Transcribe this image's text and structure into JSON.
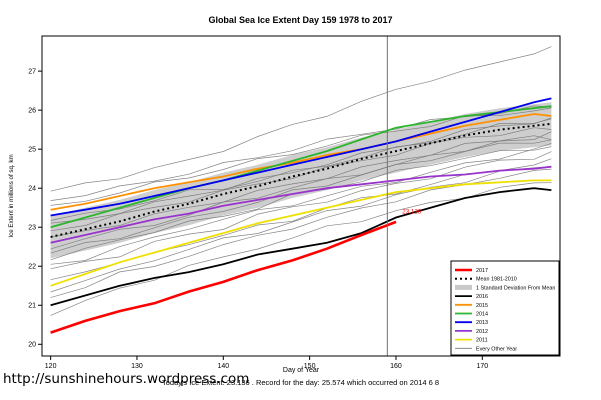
{
  "page": {
    "footer_note": "Today's Ice Extent: 23.136 . Record for the day: 25.574 which occurred on 2014 6 8",
    "site_link": "http://sunshinehours.wordpress.com"
  },
  "chart_data": {
    "type": "line",
    "title": "Global Sea Ice Extent Day 159 1978 to 2017",
    "xlabel": "Day of Year",
    "ylabel": "Ice Extent in millions of sq. km",
    "xlim": [
      119,
      179
    ],
    "ylim": [
      19.7,
      27.9
    ],
    "x_ticks": [
      120,
      130,
      140,
      150,
      160,
      170
    ],
    "y_ticks": [
      20,
      21,
      22,
      23,
      24,
      25,
      26,
      27
    ],
    "marker_day": 159,
    "annotation": {
      "text": "23.136",
      "day": 160.5,
      "value": 23.35,
      "color": "#ff0000"
    },
    "x": [
      120,
      124,
      128,
      132,
      136,
      140,
      144,
      148,
      152,
      156,
      160,
      164,
      168,
      172,
      176,
      178
    ],
    "band": {
      "name": "1 Standard Deviation From Mean",
      "color": "#c9c9c9",
      "upper": [
        23.3,
        23.5,
        23.7,
        23.95,
        24.15,
        24.4,
        24.6,
        24.85,
        25.05,
        25.3,
        25.5,
        25.7,
        25.9,
        26.05,
        26.15,
        26.2
      ],
      "lower": [
        22.2,
        22.4,
        22.6,
        22.85,
        23.05,
        23.3,
        23.5,
        23.75,
        23.95,
        24.2,
        24.4,
        24.6,
        24.8,
        24.95,
        25.05,
        25.1
      ]
    },
    "series": [
      {
        "name": "2016",
        "color": "#000000",
        "width": 1.8,
        "dash": null,
        "values": [
          21.0,
          21.25,
          21.5,
          21.7,
          21.85,
          22.05,
          22.3,
          22.45,
          22.6,
          22.85,
          23.25,
          23.5,
          23.75,
          23.9,
          24.0,
          23.95
        ]
      },
      {
        "name": "2015",
        "color": "#ff9100",
        "width": 1.8,
        "dash": null,
        "values": [
          23.45,
          23.6,
          23.8,
          24.0,
          24.15,
          24.3,
          24.5,
          24.65,
          24.85,
          25.0,
          25.2,
          25.4,
          25.6,
          25.75,
          25.9,
          25.85
        ]
      },
      {
        "name": "2014",
        "color": "#2db52d",
        "width": 1.8,
        "dash": null,
        "values": [
          23.0,
          23.25,
          23.5,
          23.75,
          24.0,
          24.2,
          24.45,
          24.7,
          24.95,
          25.25,
          25.55,
          25.7,
          25.85,
          25.95,
          26.05,
          26.1
        ]
      },
      {
        "name": "2013",
        "color": "#0000ee",
        "width": 1.8,
        "dash": null,
        "values": [
          23.3,
          23.45,
          23.6,
          23.8,
          24.0,
          24.2,
          24.4,
          24.6,
          24.8,
          25.0,
          25.2,
          25.45,
          25.7,
          25.95,
          26.2,
          26.3
        ]
      },
      {
        "name": "2012",
        "color": "#9933cc",
        "width": 1.8,
        "dash": null,
        "values": [
          22.6,
          22.8,
          23.0,
          23.2,
          23.35,
          23.55,
          23.7,
          23.85,
          24.0,
          24.1,
          24.2,
          24.3,
          24.35,
          24.45,
          24.5,
          24.55
        ]
      },
      {
        "name": "2011",
        "color": "#f0e000",
        "width": 1.8,
        "dash": null,
        "values": [
          21.5,
          21.8,
          22.1,
          22.35,
          22.6,
          22.85,
          23.1,
          23.3,
          23.5,
          23.7,
          23.9,
          24.0,
          24.1,
          24.15,
          24.2,
          24.2
        ]
      },
      {
        "name": "Mean 1981-2010",
        "color": "#000000",
        "width": 2,
        "dash": "2,3",
        "values": [
          22.75,
          22.95,
          23.15,
          23.4,
          23.6,
          23.85,
          24.05,
          24.3,
          24.5,
          24.75,
          24.95,
          25.15,
          25.35,
          25.5,
          25.6,
          25.65
        ]
      },
      {
        "name": "2017",
        "color": "#ff0000",
        "width": 2.6,
        "dash": null,
        "values": [
          20.3,
          20.6,
          20.85,
          21.05,
          21.35,
          21.6,
          21.9,
          22.15,
          22.45,
          22.8,
          23.136,
          null,
          null,
          null,
          null,
          null
        ]
      }
    ],
    "other_years": {
      "name": "Every Other Year",
      "color": "#787878",
      "width": 0.7,
      "lines": [
        [
          23.9,
          24.1,
          24.3,
          24.5,
          24.7,
          25.0,
          25.3,
          25.6,
          25.9,
          26.2,
          26.5,
          26.8,
          27.0,
          27.2,
          27.5,
          27.6
        ],
        [
          23.5,
          23.7,
          23.9,
          24.1,
          24.3,
          24.5,
          24.7,
          24.9,
          25.1,
          25.3,
          25.5,
          25.6,
          25.8,
          25.9,
          26.0,
          26.0
        ],
        [
          22.9,
          23.1,
          23.3,
          23.5,
          23.7,
          23.9,
          24.1,
          24.3,
          24.5,
          24.7,
          24.9,
          25.1,
          25.3,
          25.4,
          25.5,
          25.5
        ],
        [
          22.5,
          22.7,
          22.9,
          23.1,
          23.3,
          23.6,
          23.8,
          24.0,
          24.2,
          24.4,
          24.6,
          24.8,
          25.0,
          25.2,
          25.3,
          25.3
        ],
        [
          22.2,
          22.4,
          22.7,
          22.9,
          23.1,
          23.3,
          23.5,
          23.8,
          24.0,
          24.2,
          24.4,
          24.6,
          24.8,
          24.9,
          25.0,
          25.1
        ],
        [
          21.9,
          22.1,
          22.3,
          22.6,
          22.8,
          23.0,
          23.3,
          23.5,
          23.7,
          23.9,
          24.1,
          24.3,
          24.5,
          24.7,
          24.8,
          24.9
        ],
        [
          21.6,
          21.9,
          22.1,
          22.3,
          22.6,
          22.8,
          23.0,
          23.2,
          23.5,
          23.7,
          23.9,
          24.1,
          24.3,
          24.5,
          24.6,
          24.7
        ],
        [
          21.2,
          21.5,
          21.8,
          22.0,
          22.3,
          22.5,
          22.8,
          23.0,
          23.2,
          23.5,
          23.7,
          23.9,
          24.1,
          24.3,
          24.4,
          24.5
        ],
        [
          20.8,
          21.1,
          21.4,
          21.7,
          22.0,
          22.2,
          22.5,
          22.7,
          23.0,
          23.2,
          23.4,
          23.6,
          23.8,
          24.0,
          24.1,
          24.2
        ],
        [
          23.2,
          23.3,
          23.5,
          23.7,
          23.9,
          24.0,
          24.2,
          24.4,
          24.6,
          24.8,
          25.0,
          25.2,
          25.4,
          25.6,
          25.7,
          25.8
        ],
        [
          22.7,
          22.9,
          23.1,
          23.3,
          23.5,
          23.7,
          23.9,
          24.1,
          24.3,
          24.5,
          24.7,
          24.9,
          25.1,
          25.2,
          25.3,
          25.4
        ],
        [
          22.0,
          22.2,
          22.5,
          22.7,
          23.0,
          23.2,
          23.4,
          23.6,
          23.8,
          24.0,
          24.2,
          24.4,
          24.6,
          24.8,
          25.0,
          25.1
        ],
        [
          23.7,
          23.85,
          24.0,
          24.2,
          24.4,
          24.6,
          24.8,
          25.0,
          25.2,
          25.4,
          25.55,
          25.7,
          25.85,
          25.95,
          26.05,
          26.1
        ],
        [
          21.4,
          21.6,
          21.9,
          22.2,
          22.4,
          22.7,
          22.9,
          23.1,
          23.4,
          23.6,
          23.8,
          24.0,
          24.2,
          24.4,
          24.5,
          24.6
        ],
        [
          22.35,
          22.55,
          22.75,
          23.0,
          23.2,
          23.45,
          23.65,
          23.9,
          24.1,
          24.35,
          24.55,
          24.75,
          24.95,
          25.1,
          25.2,
          25.25
        ],
        [
          23.05,
          23.2,
          23.4,
          23.6,
          23.8,
          24.0,
          24.2,
          24.4,
          24.65,
          24.85,
          25.05,
          25.25,
          25.45,
          25.6,
          25.7,
          25.75
        ]
      ]
    },
    "legend": {
      "position": "bottom-right",
      "entries": [
        {
          "label": "2017",
          "ref": "2017"
        },
        {
          "label": "Mean 1981-2010",
          "ref": "Mean 1981-2010"
        },
        {
          "label": "1 Standard Deviation From Mean",
          "ref": "band"
        },
        {
          "label": "2016",
          "ref": "2016"
        },
        {
          "label": "2015",
          "ref": "2015"
        },
        {
          "label": "2014",
          "ref": "2014"
        },
        {
          "label": "2013",
          "ref": "2013"
        },
        {
          "label": "2012",
          "ref": "2012"
        },
        {
          "label": "2011",
          "ref": "2011"
        },
        {
          "label": "Every Other Year",
          "ref": "other"
        }
      ]
    }
  }
}
